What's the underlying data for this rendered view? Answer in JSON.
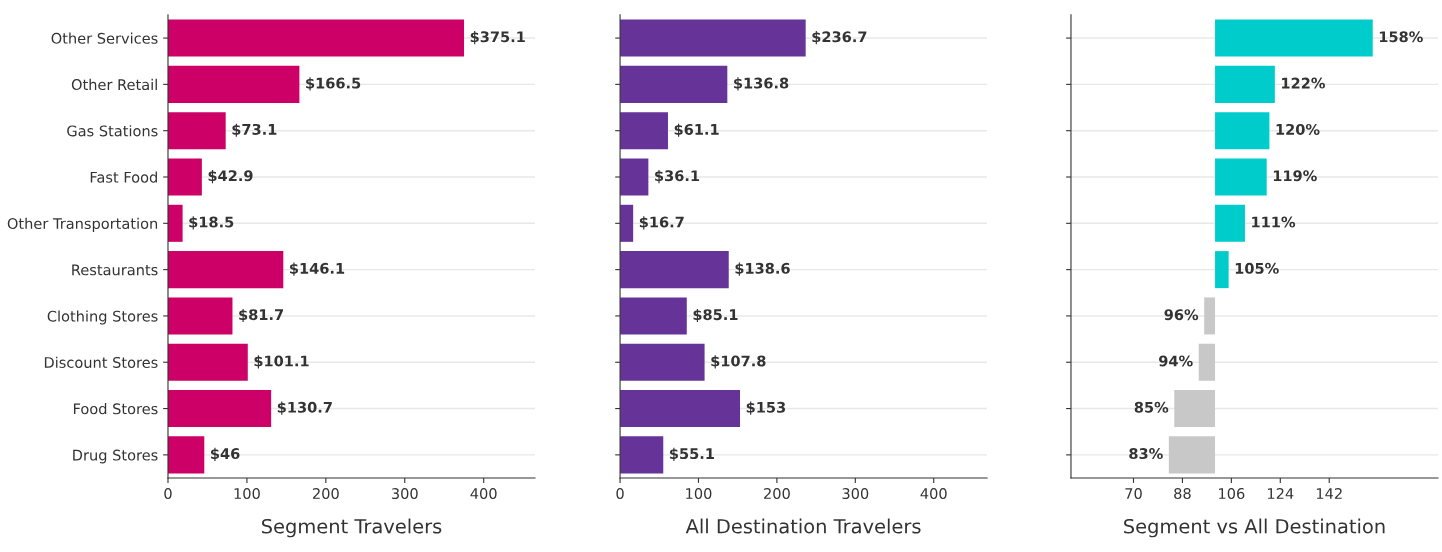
{
  "chart_data": [
    {
      "type": "bar",
      "orientation": "horizontal",
      "xlabel": "Segment Travelers",
      "categories": [
        "Other Services",
        "Other Retail",
        "Gas Stations",
        "Fast Food",
        "Other Transportation",
        "Restaurants",
        "Clothing Stores",
        "Discount Stores",
        "Food Stores",
        "Drug Stores"
      ],
      "values": [
        375.1,
        166.5,
        73.1,
        42.9,
        18.5,
        146.1,
        81.7,
        101.1,
        130.7,
        46
      ],
      "color": "#cc0066",
      "value_labels": [
        "$375.1",
        "$166.5",
        "$73.1",
        "$42.9",
        "$18.5",
        "$146.1",
        "$81.7",
        "$101.1",
        "$130.7",
        "$46"
      ],
      "xlim": [
        0,
        465
      ],
      "xticks": [
        0,
        100,
        200,
        300,
        400
      ],
      "grid": "y"
    },
    {
      "type": "bar",
      "orientation": "horizontal",
      "xlabel": "All Destination Travelers",
      "categories": [
        null,
        null,
        null,
        null,
        null,
        null,
        null,
        null,
        null,
        null
      ],
      "values": [
        236.7,
        136.8,
        61.1,
        36.1,
        16.7,
        138.6,
        85.1,
        107.8,
        153,
        55.1
      ],
      "color": "#663399",
      "value_labels": [
        "$236.7",
        "$136.8",
        "$61.1",
        "$36.1",
        "$16.7",
        "$138.6",
        "$85.1",
        "$107.8",
        "$153",
        "$55.1"
      ],
      "xlim": [
        0,
        468
      ],
      "xticks": [
        0,
        100,
        200,
        300,
        400
      ],
      "grid": "y",
      "tick_labels": "x"
    },
    {
      "type": "bar",
      "orientation": "horizontal",
      "xlabel": "Segment vs All Destination",
      "categories": [
        null,
        null,
        null,
        null,
        null,
        null,
        null,
        null,
        null,
        null
      ],
      "base": [
        100,
        100,
        100,
        100,
        100,
        100,
        100,
        100,
        100,
        100
      ],
      "values": [
        58,
        22,
        20,
        19,
        11,
        5,
        -4,
        -6,
        -15,
        -17
      ],
      "colors": [
        "#00cccc",
        "#00cccc",
        "#00cccc",
        "#00cccc",
        "#00cccc",
        "#00cccc",
        "#c8c8c8",
        "#c8c8c8",
        "#c8c8c8",
        "#c8c8c8"
      ],
      "value_labels": [
        "158%",
        "122%",
        "120%",
        "119%",
        "111%",
        "105%",
        "96%",
        "94%",
        "85%",
        "83%"
      ],
      "xlim": [
        47,
        182
      ],
      "xticks": [
        70,
        88,
        106,
        124,
        142
      ],
      "grid": "y",
      "tick_labels": "x"
    }
  ]
}
